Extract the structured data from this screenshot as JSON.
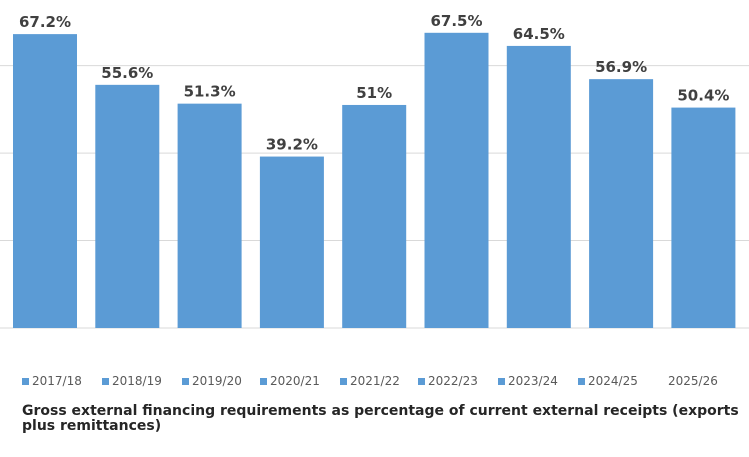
{
  "chart_data": {
    "type": "bar",
    "title": "",
    "xlabel": "",
    "ylabel": "",
    "ylim": [
      0,
      75
    ],
    "grid": true,
    "legend_position": "bottom",
    "categories": [
      "2017/18",
      "2018/19",
      "2019/20",
      "2020/21",
      "2021/22",
      "2022/23",
      "2023/24",
      "2024/25",
      "2025/26"
    ],
    "values": [
      67.2,
      55.6,
      51.3,
      39.2,
      51,
      67.5,
      64.5,
      56.9,
      50.4
    ],
    "labels": [
      "67.2%",
      "55.6%",
      "51.3%",
      "39.2%",
      "51%",
      "67.5%",
      "64.5%",
      "56.9%",
      "50.4%"
    ],
    "bar_color": "#5b9bd5",
    "caption": "Gross external financing requirements as percentage of current external receipts (exports plus remittances)"
  }
}
